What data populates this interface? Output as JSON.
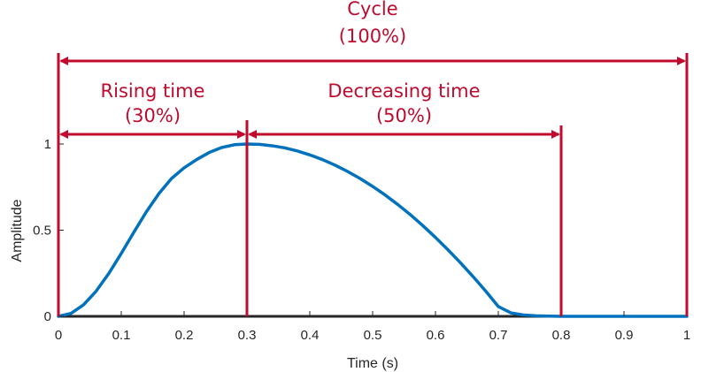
{
  "chart_data": {
    "type": "line",
    "xlabel": "Time (s)",
    "ylabel": "Amplitude",
    "xlim": [
      0,
      1
    ],
    "ylim": [
      0,
      1
    ],
    "x_ticks": [
      0,
      0.1,
      0.2,
      0.3,
      0.4,
      0.5,
      0.6,
      0.7,
      0.8,
      0.9,
      1
    ],
    "x_tick_labels": [
      "0",
      "0.1",
      "0.2",
      "0.3",
      "0.4",
      "0.5",
      "0.6",
      "0.7",
      "0.8",
      "0.9",
      "1"
    ],
    "y_ticks": [
      0,
      0.5,
      1
    ],
    "y_tick_labels": [
      "0",
      "0.5",
      "1"
    ],
    "grid": false,
    "series": [
      {
        "color": "#0072BD",
        "x": [
          0,
          0.02,
          0.04,
          0.06,
          0.08,
          0.1,
          0.12,
          0.14,
          0.16,
          0.18,
          0.2,
          0.22,
          0.24,
          0.26,
          0.28,
          0.3,
          0.32,
          0.34,
          0.36,
          0.38,
          0.4,
          0.42,
          0.44,
          0.46,
          0.48,
          0.5,
          0.52,
          0.54,
          0.56,
          0.58,
          0.6,
          0.62,
          0.64,
          0.66,
          0.68,
          0.7,
          0.72,
          0.74,
          0.76,
          0.78,
          0.8,
          0.85,
          0.9,
          0.95,
          1
        ],
        "y": [
          0,
          0.017,
          0.067,
          0.146,
          0.248,
          0.365,
          0.488,
          0.607,
          0.713,
          0.8,
          0.862,
          0.91,
          0.951,
          0.98,
          0.996,
          1,
          0.998,
          0.99,
          0.978,
          0.96,
          0.937,
          0.91,
          0.878,
          0.841,
          0.8,
          0.754,
          0.704,
          0.649,
          0.59,
          0.526,
          0.458,
          0.386,
          0.31,
          0.23,
          0.146,
          0.057,
          0.02,
          0.008,
          0.003,
          0.001,
          0,
          0,
          0,
          0,
          0
        ]
      }
    ],
    "annotations": [
      {
        "name": "cycle",
        "line1": "Cycle",
        "line2": "(100%)",
        "x_start": 0,
        "x_end": 1,
        "color": "#C00A2E"
      },
      {
        "name": "rising-time",
        "line1": "Rising time",
        "line2": "(30%)",
        "x_start": 0,
        "x_end": 0.3,
        "color": "#C00A2E"
      },
      {
        "name": "decreasing-time",
        "line1": "Decreasing time",
        "line2": "(50%)",
        "x_start": 0.3,
        "x_end": 0.8,
        "color": "#C00A2E"
      }
    ],
    "markers_x": [
      0,
      0.3,
      0.8,
      1
    ],
    "axis_color": "#262626"
  }
}
